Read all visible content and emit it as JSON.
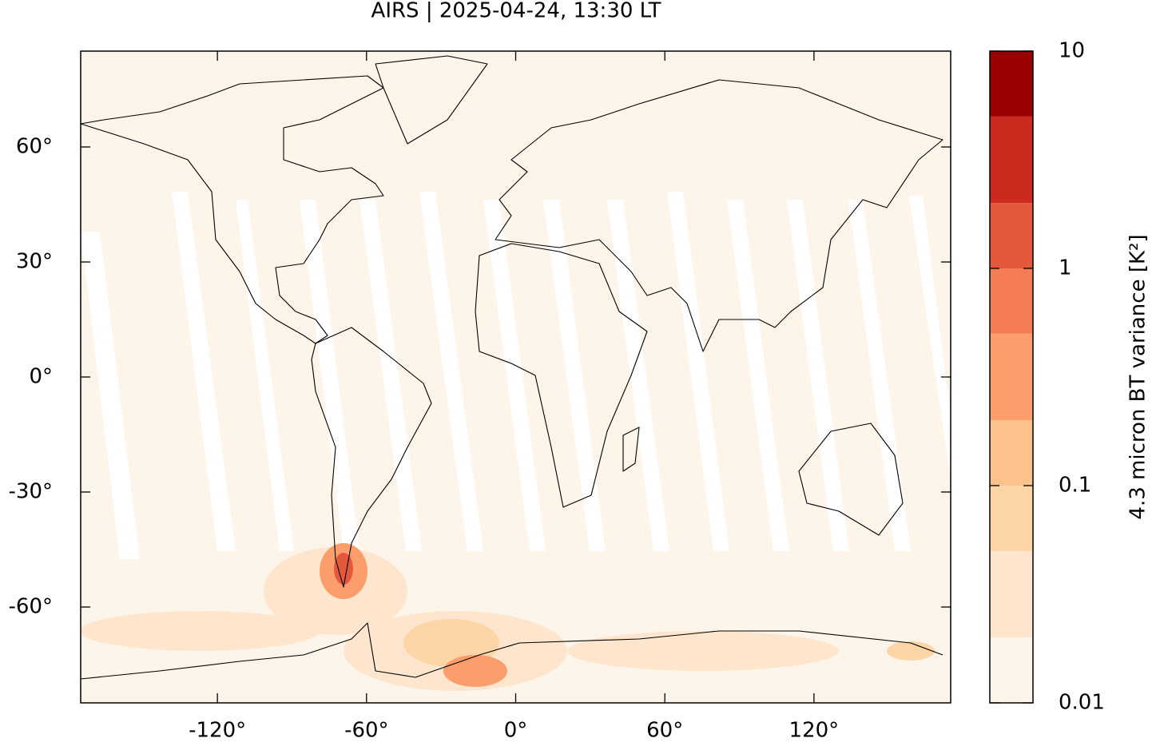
{
  "chart_data": {
    "type": "map",
    "title": "AIRS | 2025-04-24, 13:30 LT",
    "xlim": [
      -175,
      175
    ],
    "ylim": [
      -85,
      85
    ],
    "xticks": [
      {
        "value": -120,
        "label": "-120°"
      },
      {
        "value": -60,
        "label": "-60°"
      },
      {
        "value": 0,
        "label": "0°"
      },
      {
        "value": 60,
        "label": "60°"
      },
      {
        "value": 120,
        "label": "120°"
      }
    ],
    "yticks": [
      {
        "value": 60,
        "label": "60°"
      },
      {
        "value": 30,
        "label": "30°"
      },
      {
        "value": 0,
        "label": "0°"
      },
      {
        "value": -30,
        "label": "-30°"
      },
      {
        "value": -60,
        "label": "-60°"
      }
    ],
    "colorbar": {
      "label": "4.3 micron BT variance [K²]",
      "log_scale": true,
      "lim": [
        0.01,
        10
      ],
      "ticks": [
        0.01,
        0.1,
        1,
        10
      ],
      "levels": [
        0.01,
        0.02,
        0.05,
        0.1,
        0.2,
        0.5,
        1,
        2,
        5,
        10
      ],
      "colors": [
        "#fef5ea",
        "#fde6cd",
        "#fdd5a6",
        "#fcc28b",
        "#fc9e6b",
        "#f47d55",
        "#e4583c",
        "#cb2b1f",
        "#990000"
      ]
    }
  }
}
